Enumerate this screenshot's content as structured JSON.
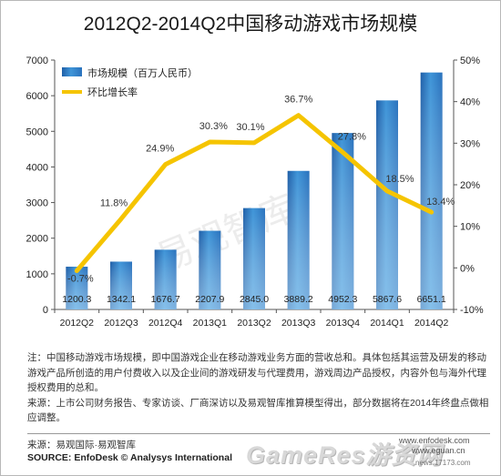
{
  "chart_data": {
    "type": "bar+line",
    "title": "2012Q2-2014Q2中国移动游戏市场规模",
    "categories": [
      "2012Q2",
      "2012Q3",
      "2012Q4",
      "2013Q1",
      "2013Q2",
      "2013Q3",
      "2013Q4",
      "2014Q1",
      "2014Q2"
    ],
    "series": [
      {
        "name": "市场规模（百万人民币）",
        "type": "bar",
        "axis": "left",
        "color": "#2f7fc6",
        "values": [
          1200.3,
          1342.1,
          1676.7,
          2207.9,
          2845.0,
          3889.2,
          4952.3,
          5867.6,
          6651.1
        ],
        "labels": [
          "1200.3",
          "1342.1",
          "1676.7",
          "2207.9",
          "2845.0",
          "3889.2",
          "4952.3",
          "5867.6",
          "6651.1"
        ]
      },
      {
        "name": "环比增长率",
        "type": "line",
        "axis": "right",
        "color": "#f5c400",
        "values": [
          -0.7,
          11.8,
          24.9,
          30.3,
          30.1,
          36.7,
          27.8,
          18.5,
          13.4
        ],
        "labels": [
          "-0.7%",
          "11.8%",
          "24.9%",
          "30.3%",
          "30.1%",
          "36.7%",
          "27.8%",
          "18.5%",
          "13.4%"
        ]
      }
    ],
    "y_left": {
      "min": 0,
      "max": 7000,
      "ticks": [
        "0",
        "1000",
        "2000",
        "3000",
        "4000",
        "5000",
        "6000",
        "7000"
      ],
      "tick_values": [
        0,
        1000,
        2000,
        3000,
        4000,
        5000,
        6000,
        7000
      ]
    },
    "y_right": {
      "min": -10,
      "max": 50,
      "ticks": [
        "-10%",
        "0%",
        "10%",
        "20%",
        "30%",
        "40%",
        "50%"
      ],
      "tick_values": [
        -10,
        0,
        10,
        20,
        30,
        40,
        50
      ]
    },
    "legend": {
      "placement": "top-left",
      "items": [
        "市场规模（百万人民币）",
        "环比增长率"
      ]
    },
    "grid": false
  },
  "notes": {
    "note": "注：中国移动游戏市场规模，即中国游戏企业在移动游戏业务方面的营收总和。具体包括其运营及研发的移动游戏产品所创造的用户付费收入以及企业间的游戏研发与代理费用，游戏周边产品授权，内容外包与海外代理授权费用的总和。",
    "source_desc": "来源：上市公司财务报告、专家访谈、厂商深访以及易观智库推算模型得出，部分数据将在2014年终盘点做相应调整。"
  },
  "footer": {
    "source_cn": "来源：易观国际·易观智库",
    "source_en": "SOURCE: EnfoDesk © Analysys International",
    "logo_text": "GameRes游资网",
    "url_1": "www.enfodesk.com",
    "url_2": "www.eguan.cn",
    "url_3": "news.17173.com"
  },
  "watermark": "易观智库",
  "colors": {
    "bar": "#2f7fc6",
    "bar_light": "#7fc0ee",
    "line": "#f5c400",
    "axis": "#555555"
  }
}
